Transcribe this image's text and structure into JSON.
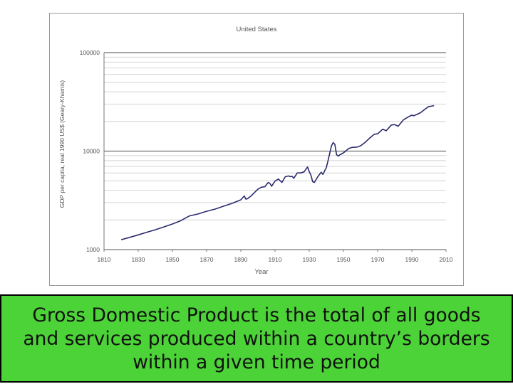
{
  "chart_data": {
    "type": "line",
    "title": "United States",
    "xlabel": "Year",
    "ylabel": "GDP per capita, real 1990 US$ (Geary-Khamis)",
    "yscale": "log",
    "xlim": [
      1810,
      2010
    ],
    "ylim": [
      1000,
      100000
    ],
    "x_ticks": [
      "1810",
      "1830",
      "1850",
      "1870",
      "1890",
      "1910",
      "1930",
      "1950",
      "1970",
      "1990",
      "2010"
    ],
    "y_ticks": [
      "1000",
      "10000",
      "100000"
    ],
    "grid": true,
    "legend": "none",
    "series": [
      {
        "color": "#2b2b6e",
        "x": [
          1820,
          1825,
          1830,
          1835,
          1840,
          1845,
          1850,
          1855,
          1860,
          1865,
          1870,
          1875,
          1880,
          1885,
          1890,
          1892,
          1893,
          1894,
          1896,
          1898,
          1900,
          1902,
          1904,
          1906,
          1907,
          1908,
          1910,
          1912,
          1914,
          1916,
          1918,
          1919,
          1920,
          1921,
          1923,
          1925,
          1927,
          1929,
          1930,
          1931,
          1932,
          1933,
          1935,
          1937,
          1938,
          1939,
          1940,
          1941,
          1942,
          1943,
          1944,
          1945,
          1946,
          1947,
          1948,
          1950,
          1953,
          1955,
          1958,
          1960,
          1963,
          1965,
          1968,
          1970,
          1973,
          1975,
          1978,
          1980,
          1982,
          1985,
          1988,
          1990,
          1991,
          1993,
          1995,
          1998,
          2000,
          2001,
          2003
        ],
        "values": [
          1260,
          1330,
          1410,
          1500,
          1590,
          1700,
          1820,
          1970,
          2200,
          2300,
          2450,
          2580,
          2760,
          2950,
          3200,
          3500,
          3250,
          3300,
          3500,
          3800,
          4100,
          4300,
          4350,
          4800,
          4700,
          4400,
          4970,
          5200,
          4800,
          5500,
          5600,
          5500,
          5550,
          5300,
          6000,
          6000,
          6150,
          6900,
          6200,
          5700,
          4900,
          4800,
          5500,
          6100,
          5800,
          6300,
          6800,
          8000,
          9500,
          11300,
          12200,
          11700,
          9200,
          8900,
          9200,
          9600,
          10600,
          10900,
          11000,
          11300,
          12400,
          13400,
          14800,
          15000,
          16700,
          16100,
          18400,
          18600,
          17900,
          20700,
          22300,
          23200,
          22800,
          23600,
          24500,
          26900,
          28400,
          28500,
          29000
        ]
      }
    ]
  },
  "caption": {
    "line1": "Gross Domestic Product is the total of all goods",
    "line2": "and services produced within a country’s borders",
    "line3": "within a given time period"
  },
  "colors": {
    "caption_background": "#4cd337",
    "series_line": "#2b2b6e",
    "grid_minor": "#d4d4d4",
    "grid_major": "#707070"
  }
}
